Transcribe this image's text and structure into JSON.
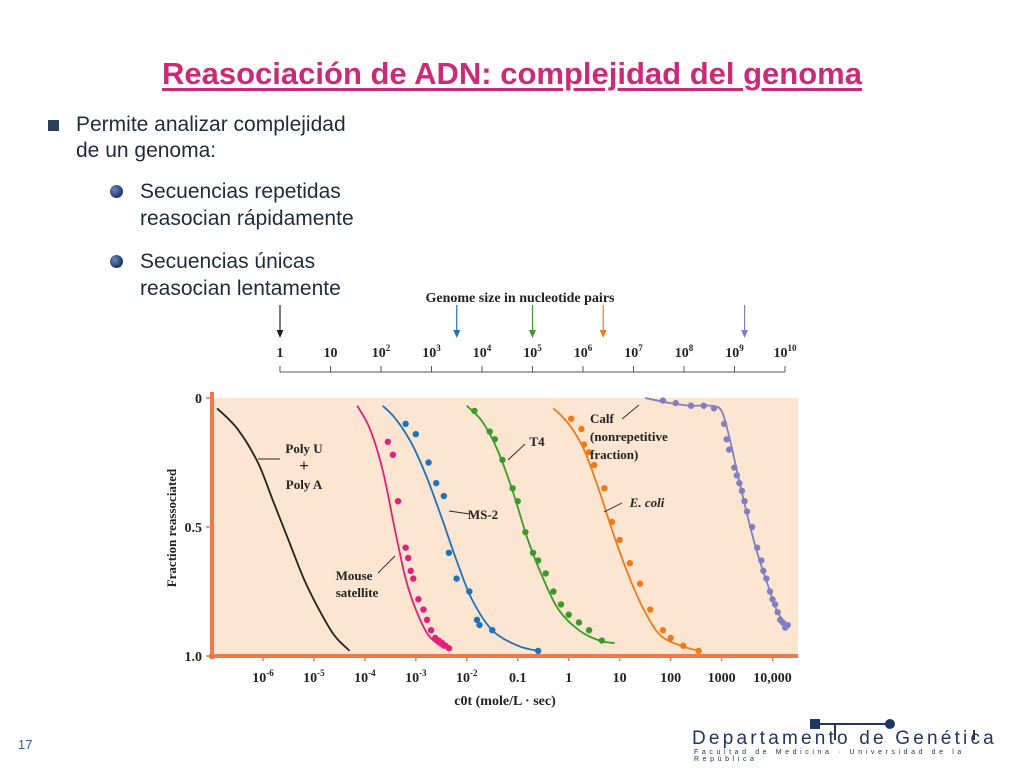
{
  "slide": {
    "title": "Reasociación de ADN: complejidad del genoma",
    "bullet_main": "Permite analizar complejidad\nde un genoma:",
    "sub_bullets": [
      "Secuencias repetidas\nreasocian rápidamente",
      "Secuencias únicas\nreasocian lentamente"
    ],
    "page_number": "17"
  },
  "footer": {
    "department": "Departamento de Genética",
    "subtitle": "Facultad de Medicina · Universidad de la República"
  },
  "colors": {
    "title": "#cc2a78",
    "plot_background": "#fce6d2",
    "axis_orange": "#f0784a",
    "poly_u_a": "#222222",
    "mouse_satellite": "#e0207a",
    "ms2": "#1f72b8",
    "t4": "#3a9a2a",
    "e_coli": "#f07a1a",
    "calf": "#8080c0"
  },
  "chart_data": [
    {
      "type": "scale",
      "title": "Genome size in nucleotide pairs",
      "tick_labels": [
        "1",
        "10",
        "10^2",
        "10^3",
        "10^4",
        "10^5",
        "10^6",
        "10^7",
        "10^8",
        "10^9",
        "10^10"
      ],
      "arrows": [
        {
          "log10_value": 0,
          "color": "#222222"
        },
        {
          "log10_value": 3.5,
          "color": "#1f72b8"
        },
        {
          "log10_value": 5,
          "color": "#3a9a2a"
        },
        {
          "log10_value": 6.4,
          "color": "#f07a1a"
        },
        {
          "log10_value": 9.2,
          "color": "#8080c0"
        }
      ]
    },
    {
      "type": "line",
      "xlabel": "c0t (mole/L · sec)",
      "ylabel": "Fraction reassociated",
      "x_scale": "log10",
      "xlim": [
        -7,
        4.5
      ],
      "ylim": [
        0,
        1.0
      ],
      "y_inverted": true,
      "y_ticks": [
        {
          "value": 0,
          "label": "0"
        },
        {
          "value": 0.5,
          "label": "0.5"
        },
        {
          "value": 1.0,
          "label": "1.0"
        }
      ],
      "x_ticks": [
        {
          "log10_value": -6,
          "label": "10^-6"
        },
        {
          "log10_value": -5,
          "label": "10^-5"
        },
        {
          "log10_value": -4,
          "label": "10^-4"
        },
        {
          "log10_value": -3,
          "label": "10^-3"
        },
        {
          "log10_value": -2,
          "label": "10^-2"
        },
        {
          "log10_value": -1,
          "label": "0.1"
        },
        {
          "log10_value": 0,
          "label": "1"
        },
        {
          "log10_value": 1,
          "label": "10"
        },
        {
          "log10_value": 2,
          "label": "100"
        },
        {
          "log10_value": 3,
          "label": "1000"
        },
        {
          "log10_value": 4,
          "label": "10,000"
        }
      ],
      "series": [
        {
          "name": "Poly U + Poly A",
          "color": "#222222",
          "line": [
            [
              -6.9,
              0.04
            ],
            [
              -6.5,
              0.12
            ],
            [
              -6.1,
              0.25
            ],
            [
              -5.8,
              0.4
            ],
            [
              -5.5,
              0.55
            ],
            [
              -5.2,
              0.7
            ],
            [
              -4.9,
              0.82
            ],
            [
              -4.6,
              0.92
            ],
            [
              -4.3,
              0.98
            ]
          ],
          "points": []
        },
        {
          "name": "Mouse satellite",
          "color": "#e0207a",
          "line": [
            [
              -4.15,
              0.03
            ],
            [
              -3.9,
              0.12
            ],
            [
              -3.65,
              0.28
            ],
            [
              -3.4,
              0.52
            ],
            [
              -3.2,
              0.7
            ],
            [
              -3.0,
              0.82
            ],
            [
              -2.75,
              0.92
            ],
            [
              -2.45,
              0.97
            ]
          ],
          "points": [
            [
              -3.55,
              0.17
            ],
            [
              -3.45,
              0.22
            ],
            [
              -3.35,
              0.4
            ],
            [
              -3.2,
              0.58
            ],
            [
              -3.15,
              0.62
            ],
            [
              -3.1,
              0.67
            ],
            [
              -3.05,
              0.7
            ],
            [
              -2.95,
              0.78
            ],
            [
              -2.85,
              0.82
            ],
            [
              -2.78,
              0.86
            ],
            [
              -2.7,
              0.9
            ],
            [
              -2.62,
              0.93
            ],
            [
              -2.55,
              0.94
            ],
            [
              -2.48,
              0.95
            ],
            [
              -2.42,
              0.96
            ],
            [
              -2.35,
              0.97
            ]
          ]
        },
        {
          "name": "MS-2",
          "color": "#1f72b8",
          "line": [
            [
              -3.65,
              0.03
            ],
            [
              -3.4,
              0.08
            ],
            [
              -3.1,
              0.17
            ],
            [
              -2.8,
              0.3
            ],
            [
              -2.5,
              0.46
            ],
            [
              -2.2,
              0.63
            ],
            [
              -1.9,
              0.78
            ],
            [
              -1.5,
              0.9
            ],
            [
              -1.0,
              0.96
            ],
            [
              -0.6,
              0.98
            ]
          ],
          "points": [
            [
              -3.2,
              0.1
            ],
            [
              -3.0,
              0.14
            ],
            [
              -2.75,
              0.25
            ],
            [
              -2.6,
              0.33
            ],
            [
              -2.45,
              0.38
            ],
            [
              -2.35,
              0.6
            ],
            [
              -2.2,
              0.7
            ],
            [
              -1.95,
              0.75
            ],
            [
              -1.8,
              0.86
            ],
            [
              -1.75,
              0.88
            ],
            [
              -1.5,
              0.9
            ],
            [
              -0.6,
              0.98
            ]
          ]
        },
        {
          "name": "T4",
          "color": "#3a9a2a",
          "line": [
            [
              -2.0,
              0.03
            ],
            [
              -1.7,
              0.09
            ],
            [
              -1.4,
              0.2
            ],
            [
              -1.1,
              0.36
            ],
            [
              -0.8,
              0.55
            ],
            [
              -0.5,
              0.7
            ],
            [
              -0.2,
              0.82
            ],
            [
              0.2,
              0.9
            ],
            [
              0.6,
              0.94
            ],
            [
              0.9,
              0.95
            ]
          ],
          "points": [
            [
              -1.85,
              0.05
            ],
            [
              -1.55,
              0.13
            ],
            [
              -1.45,
              0.16
            ],
            [
              -1.3,
              0.24
            ],
            [
              -1.1,
              0.35
            ],
            [
              -1.0,
              0.4
            ],
            [
              -0.85,
              0.52
            ],
            [
              -0.7,
              0.6
            ],
            [
              -0.6,
              0.63
            ],
            [
              -0.45,
              0.68
            ],
            [
              -0.3,
              0.75
            ],
            [
              -0.15,
              0.8
            ],
            [
              0.0,
              0.84
            ],
            [
              0.2,
              0.87
            ],
            [
              0.4,
              0.9
            ],
            [
              0.65,
              0.94
            ]
          ]
        },
        {
          "name": "E. coli",
          "color": "#f07a1a",
          "line": [
            [
              -0.3,
              0.04
            ],
            [
              0.0,
              0.1
            ],
            [
              0.3,
              0.2
            ],
            [
              0.6,
              0.36
            ],
            [
              0.9,
              0.54
            ],
            [
              1.2,
              0.7
            ],
            [
              1.5,
              0.83
            ],
            [
              1.8,
              0.92
            ],
            [
              2.2,
              0.96
            ],
            [
              2.55,
              0.98
            ]
          ],
          "points": [
            [
              0.05,
              0.08
            ],
            [
              0.25,
              0.12
            ],
            [
              0.3,
              0.18
            ],
            [
              0.4,
              0.21
            ],
            [
              0.5,
              0.26
            ],
            [
              0.7,
              0.35
            ],
            [
              0.85,
              0.48
            ],
            [
              1.0,
              0.55
            ],
            [
              1.2,
              0.64
            ],
            [
              1.4,
              0.72
            ],
            [
              1.6,
              0.82
            ],
            [
              1.85,
              0.9
            ],
            [
              2.0,
              0.93
            ],
            [
              2.25,
              0.96
            ],
            [
              2.55,
              0.98
            ]
          ]
        },
        {
          "name": "Calf (nonrepetitive fraction)",
          "color": "#8080c0",
          "line": [
            [
              1.5,
              0.0
            ],
            [
              2.0,
              0.02
            ],
            [
              2.4,
              0.03
            ],
            [
              2.8,
              0.03
            ],
            [
              3.0,
              0.05
            ],
            [
              3.15,
              0.15
            ],
            [
              3.3,
              0.28
            ],
            [
              3.5,
              0.45
            ],
            [
              3.7,
              0.6
            ],
            [
              3.9,
              0.72
            ],
            [
              4.1,
              0.83
            ],
            [
              4.3,
              0.88
            ]
          ],
          "points": [
            [
              1.85,
              0.01
            ],
            [
              2.1,
              0.02
            ],
            [
              2.4,
              0.03
            ],
            [
              2.65,
              0.03
            ],
            [
              2.85,
              0.04
            ],
            [
              3.05,
              0.1
            ],
            [
              3.1,
              0.16
            ],
            [
              3.15,
              0.2
            ],
            [
              3.25,
              0.27
            ],
            [
              3.3,
              0.3
            ],
            [
              3.35,
              0.33
            ],
            [
              3.4,
              0.36
            ],
            [
              3.45,
              0.4
            ],
            [
              3.5,
              0.44
            ],
            [
              3.6,
              0.5
            ],
            [
              3.7,
              0.58
            ],
            [
              3.78,
              0.63
            ],
            [
              3.82,
              0.67
            ],
            [
              3.88,
              0.7
            ],
            [
              3.95,
              0.75
            ],
            [
              4.0,
              0.78
            ],
            [
              4.05,
              0.8
            ],
            [
              4.1,
              0.83
            ],
            [
              4.15,
              0.86
            ],
            [
              4.2,
              0.87
            ],
            [
              4.25,
              0.89
            ],
            [
              4.3,
              0.88
            ]
          ]
        }
      ],
      "annotations": [
        {
          "text": "Poly U",
          "series": "Poly U + Poly A"
        },
        {
          "text": "+",
          "series": "Poly U + Poly A"
        },
        {
          "text": "Poly A",
          "series": "Poly U + Poly A"
        },
        {
          "text": "Mouse",
          "series": "Mouse satellite"
        },
        {
          "text": "satellite",
          "series": "Mouse satellite"
        },
        {
          "text": "MS-2",
          "series": "MS-2"
        },
        {
          "text": "T4",
          "series": "T4"
        },
        {
          "text": "E. coli",
          "series": "E. coli"
        },
        {
          "text": "Calf",
          "series": "Calf (nonrepetitive fraction)"
        },
        {
          "text": "(nonrepetitive",
          "series": "Calf (nonrepetitive fraction)"
        },
        {
          "text": "fraction)",
          "series": "Calf (nonrepetitive fraction)"
        }
      ]
    }
  ]
}
